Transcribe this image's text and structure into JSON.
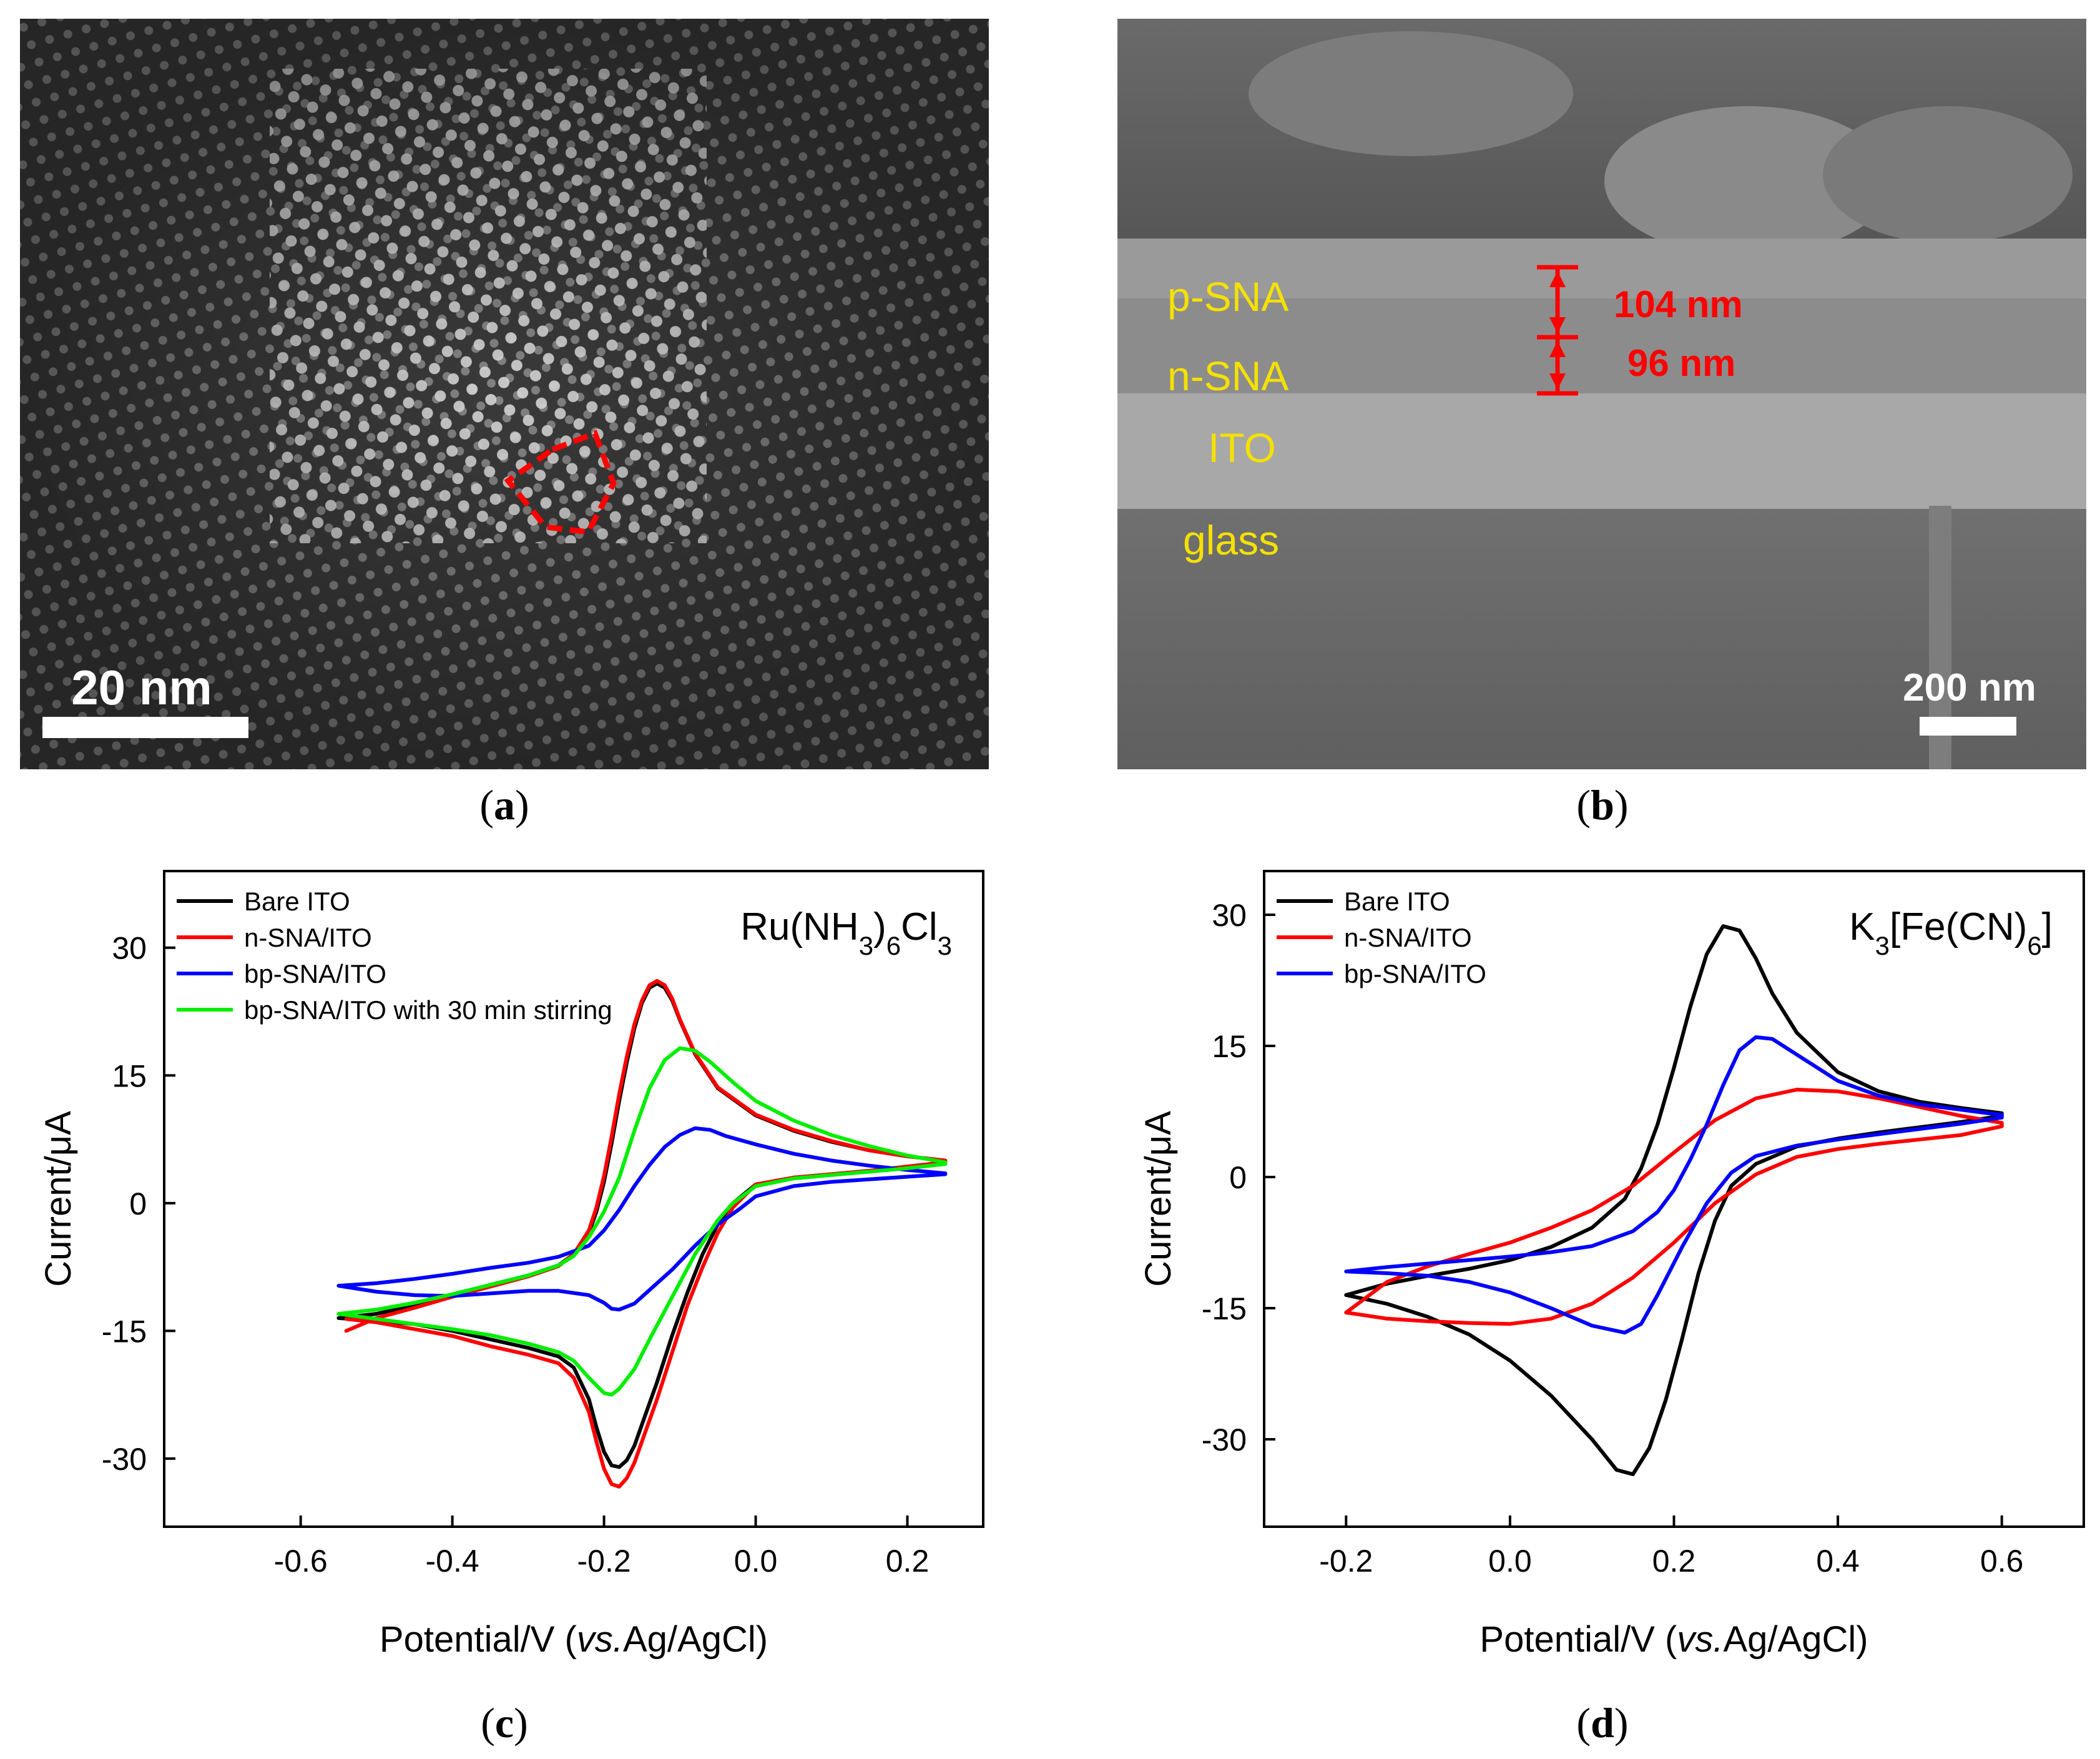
{
  "panels": {
    "a": {
      "letter": "a",
      "scale_bar_label": "20 nm"
    },
    "b": {
      "letter": "b",
      "layer_labels": [
        "p-SNA",
        "n-SNA",
        "ITO",
        "glass"
      ],
      "thickness_labels": [
        "104 nm",
        "96 nm"
      ],
      "scale_bar_label": "200 nm"
    },
    "c": {
      "letter": "c"
    },
    "d": {
      "letter": "d"
    }
  },
  "colors": {
    "black": "#000000",
    "red": "#ff0000",
    "blue": "#0000ff",
    "green": "#00ee00",
    "annotation_red": "#ff0000",
    "annotation_yellow": "#f5e100",
    "probe_title": "#0000ff"
  },
  "chart_data": [
    {
      "id": "c",
      "type": "line",
      "title": "Ru(NH₃)₆Cl₃",
      "title_parts": [
        {
          "t": "Ru(NH"
        },
        {
          "t": "3",
          "sub": true
        },
        {
          "t": ")"
        },
        {
          "t": "6",
          "sub": true
        },
        {
          "t": "Cl"
        },
        {
          "t": "3",
          "sub": true
        }
      ],
      "xlabel_prefix": "Potential/V (",
      "xlabel_italic": "vs.",
      "xlabel_suffix": "Ag/AgCl)",
      "ylabel": "Current/μA",
      "xlim": [
        -0.78,
        0.3
      ],
      "ylim": [
        -38,
        39
      ],
      "xticks": [
        -0.6,
        -0.4,
        -0.2,
        0.0,
        0.2
      ],
      "xtick_labels": [
        "-0.6",
        "-0.4",
        "-0.2",
        "0.0",
        "0.2"
      ],
      "yticks": [
        -30,
        -15,
        0,
        15,
        30
      ],
      "ytick_labels": [
        "-30",
        "-15",
        "0",
        "15",
        "30"
      ],
      "legend": "top-left",
      "series": [
        {
          "name": "Bare ITO",
          "color": "black",
          "x": [
            -0.55,
            -0.5,
            -0.45,
            -0.4,
            -0.35,
            -0.3,
            -0.26,
            -0.24,
            -0.22,
            -0.21,
            -0.2,
            -0.19,
            -0.18,
            -0.17,
            -0.16,
            -0.15,
            -0.14,
            -0.13,
            -0.12,
            -0.11,
            -0.1,
            -0.08,
            -0.05,
            0.0,
            0.05,
            0.1,
            0.15,
            0.2,
            0.25,
            0.25,
            0.2,
            0.15,
            0.1,
            0.05,
            0.0,
            -0.03,
            -0.05,
            -0.07,
            -0.09,
            -0.11,
            -0.13,
            -0.15,
            -0.16,
            -0.17,
            -0.18,
            -0.19,
            -0.2,
            -0.21,
            -0.22,
            -0.24,
            -0.26,
            -0.3,
            -0.35,
            -0.4,
            -0.45,
            -0.5,
            -0.55
          ],
          "y": [
            -13.5,
            -13.0,
            -12.0,
            -10.8,
            -9.6,
            -8.5,
            -7.3,
            -6.0,
            -3.5,
            -1.0,
            2.5,
            7.0,
            12.0,
            16.5,
            20.5,
            23.5,
            25.3,
            25.8,
            25.3,
            23.8,
            21.5,
            17.5,
            13.5,
            10.3,
            8.5,
            7.2,
            6.2,
            5.5,
            5.0,
            4.8,
            4.3,
            3.8,
            3.4,
            3.0,
            2.2,
            0.0,
            -2.5,
            -6.0,
            -10.5,
            -15.5,
            -21.0,
            -26.0,
            -28.5,
            -30.2,
            -31.0,
            -30.8,
            -29.2,
            -26.3,
            -23.0,
            -19.3,
            -18.0,
            -17.0,
            -16.0,
            -15.0,
            -14.2,
            -13.8,
            -13.5
          ]
        },
        {
          "name": "n-SNA/ITO",
          "color": "red",
          "x": [
            -0.54,
            -0.5,
            -0.45,
            -0.4,
            -0.35,
            -0.3,
            -0.26,
            -0.24,
            -0.22,
            -0.21,
            -0.2,
            -0.19,
            -0.18,
            -0.17,
            -0.16,
            -0.15,
            -0.14,
            -0.13,
            -0.12,
            -0.11,
            -0.1,
            -0.08,
            -0.05,
            0.0,
            0.05,
            0.1,
            0.15,
            0.2,
            0.25,
            0.25,
            0.2,
            0.15,
            0.1,
            0.05,
            0.0,
            -0.03,
            -0.05,
            -0.07,
            -0.09,
            -0.11,
            -0.13,
            -0.15,
            -0.16,
            -0.17,
            -0.18,
            -0.19,
            -0.2,
            -0.21,
            -0.22,
            -0.24,
            -0.26,
            -0.3,
            -0.35,
            -0.4,
            -0.45,
            -0.5,
            -0.54
          ],
          "y": [
            -15.0,
            -13.5,
            -12.3,
            -11.0,
            -9.8,
            -8.6,
            -7.4,
            -6.0,
            -3.2,
            -0.5,
            3.2,
            7.8,
            12.8,
            17.2,
            21.0,
            23.8,
            25.6,
            26.1,
            25.6,
            24.0,
            21.6,
            17.6,
            13.6,
            10.4,
            8.6,
            7.3,
            6.2,
            5.5,
            5.0,
            4.8,
            4.3,
            3.8,
            3.4,
            3.0,
            2.2,
            -0.5,
            -3.5,
            -7.5,
            -12.0,
            -17.5,
            -23.0,
            -28.0,
            -30.5,
            -32.3,
            -33.3,
            -33.0,
            -31.2,
            -28.0,
            -24.5,
            -20.5,
            -18.8,
            -17.8,
            -16.8,
            -15.6,
            -14.8,
            -14.0,
            -13.6
          ]
        },
        {
          "name": "bp-SNA/ITO",
          "color": "blue",
          "x": [
            -0.55,
            -0.5,
            -0.45,
            -0.4,
            -0.35,
            -0.3,
            -0.26,
            -0.22,
            -0.2,
            -0.18,
            -0.16,
            -0.14,
            -0.12,
            -0.1,
            -0.08,
            -0.06,
            -0.04,
            0.0,
            0.05,
            0.1,
            0.15,
            0.2,
            0.25,
            0.25,
            0.2,
            0.15,
            0.1,
            0.05,
            0.0,
            -0.02,
            -0.05,
            -0.08,
            -0.11,
            -0.14,
            -0.16,
            -0.18,
            -0.19,
            -0.2,
            -0.22,
            -0.26,
            -0.3,
            -0.35,
            -0.4,
            -0.45,
            -0.5,
            -0.55
          ],
          "y": [
            -9.7,
            -9.4,
            -8.9,
            -8.3,
            -7.6,
            -7.0,
            -6.3,
            -5.0,
            -3.2,
            -0.8,
            2.0,
            4.5,
            6.6,
            8.0,
            8.8,
            8.6,
            7.9,
            6.9,
            5.8,
            5.0,
            4.4,
            3.9,
            3.5,
            3.4,
            3.1,
            2.8,
            2.5,
            2.0,
            0.8,
            -0.6,
            -2.5,
            -5.0,
            -7.8,
            -10.2,
            -11.8,
            -12.5,
            -12.4,
            -11.7,
            -10.8,
            -10.3,
            -10.3,
            -10.6,
            -10.9,
            -10.8,
            -10.4,
            -9.7
          ]
        },
        {
          "name": "bp-SNA/ITO with 30 min stirring",
          "color": "green",
          "x": [
            -0.55,
            -0.5,
            -0.45,
            -0.4,
            -0.35,
            -0.3,
            -0.26,
            -0.24,
            -0.22,
            -0.2,
            -0.18,
            -0.16,
            -0.14,
            -0.12,
            -0.1,
            -0.08,
            -0.06,
            -0.03,
            0.0,
            0.05,
            0.1,
            0.15,
            0.2,
            0.25,
            0.25,
            0.2,
            0.15,
            0.1,
            0.05,
            0.0,
            -0.03,
            -0.05,
            -0.08,
            -0.11,
            -0.14,
            -0.16,
            -0.18,
            -0.19,
            -0.2,
            -0.22,
            -0.24,
            -0.26,
            -0.3,
            -0.35,
            -0.4,
            -0.45,
            -0.5,
            -0.55
          ],
          "y": [
            -13.0,
            -12.5,
            -11.7,
            -10.7,
            -9.6,
            -8.5,
            -7.3,
            -6.2,
            -4.0,
            -1.0,
            3.0,
            8.5,
            13.5,
            16.8,
            18.2,
            17.9,
            16.6,
            14.2,
            12.0,
            9.7,
            8.0,
            6.7,
            5.6,
            4.8,
            4.6,
            4.1,
            3.7,
            3.3,
            2.9,
            2.0,
            0.0,
            -2.0,
            -6.0,
            -11.0,
            -16.0,
            -19.5,
            -21.8,
            -22.5,
            -22.3,
            -20.5,
            -18.5,
            -17.5,
            -16.5,
            -15.5,
            -14.8,
            -14.2,
            -13.6,
            -13.0
          ]
        }
      ]
    },
    {
      "id": "d",
      "type": "line",
      "title": "K₃[Fe(CN)₆]",
      "title_parts": [
        {
          "t": "K"
        },
        {
          "t": "3",
          "sub": true
        },
        {
          "t": "[Fe(CN)"
        },
        {
          "t": "6",
          "sub": true
        },
        {
          "t": "]"
        }
      ],
      "xlabel_prefix": "Potential/V (",
      "xlabel_italic": "vs.",
      "xlabel_suffix": "Ag/AgCl)",
      "ylabel": "Current/μA",
      "xlim": [
        -0.3,
        0.7
      ],
      "ylim": [
        -40,
        35
      ],
      "xticks": [
        -0.2,
        0.0,
        0.2,
        0.4,
        0.6
      ],
      "xtick_labels": [
        "-0.2",
        "0.0",
        "0.2",
        "0.4",
        "0.6"
      ],
      "yticks": [
        -30,
        -15,
        0,
        15,
        30
      ],
      "ytick_labels": [
        "-30",
        "-15",
        "0",
        "15",
        "30"
      ],
      "legend": "top-left",
      "series": [
        {
          "name": "Bare ITO",
          "color": "black",
          "x": [
            -0.2,
            -0.15,
            -0.1,
            -0.05,
            0.0,
            0.05,
            0.1,
            0.14,
            0.16,
            0.18,
            0.2,
            0.22,
            0.24,
            0.26,
            0.28,
            0.3,
            0.32,
            0.35,
            0.4,
            0.45,
            0.5,
            0.55,
            0.6,
            0.6,
            0.55,
            0.5,
            0.45,
            0.4,
            0.35,
            0.3,
            0.27,
            0.25,
            0.23,
            0.21,
            0.19,
            0.17,
            0.15,
            0.13,
            0.1,
            0.05,
            0.0,
            -0.05,
            -0.1,
            -0.15,
            -0.2
          ],
          "y": [
            -13.5,
            -12.2,
            -11.3,
            -10.5,
            -9.5,
            -8.0,
            -5.8,
            -2.5,
            1.0,
            6.0,
            12.5,
            19.5,
            25.5,
            28.7,
            28.2,
            25.0,
            21.0,
            16.5,
            12.0,
            9.8,
            8.6,
            7.9,
            7.3,
            7.0,
            6.3,
            5.7,
            5.1,
            4.4,
            3.5,
            1.5,
            -1.0,
            -5.0,
            -11.0,
            -18.5,
            -25.5,
            -31.0,
            -34.0,
            -33.5,
            -30.0,
            -25.0,
            -21.0,
            -18.0,
            -16.0,
            -14.5,
            -13.5
          ]
        },
        {
          "name": "n-SNA/ITO",
          "color": "red",
          "x": [
            -0.2,
            -0.15,
            -0.1,
            -0.05,
            0.0,
            0.05,
            0.1,
            0.15,
            0.2,
            0.25,
            0.3,
            0.35,
            0.4,
            0.45,
            0.5,
            0.55,
            0.6,
            0.6,
            0.55,
            0.5,
            0.45,
            0.4,
            0.35,
            0.3,
            0.25,
            0.2,
            0.15,
            0.1,
            0.05,
            0.0,
            -0.05,
            -0.1,
            -0.15,
            -0.2
          ],
          "y": [
            -15.5,
            -12.0,
            -10.2,
            -8.8,
            -7.5,
            -5.8,
            -3.8,
            -1.0,
            2.8,
            6.5,
            9.0,
            10.0,
            9.8,
            9.0,
            8.0,
            7.0,
            6.2,
            5.8,
            4.8,
            4.3,
            3.8,
            3.2,
            2.3,
            0.3,
            -3.0,
            -7.5,
            -11.5,
            -14.5,
            -16.2,
            -16.8,
            -16.7,
            -16.5,
            -16.2,
            -15.5
          ]
        },
        {
          "name": "bp-SNA/ITO",
          "color": "blue",
          "x": [
            -0.2,
            -0.15,
            -0.1,
            -0.05,
            0.0,
            0.05,
            0.1,
            0.15,
            0.18,
            0.2,
            0.22,
            0.24,
            0.26,
            0.28,
            0.3,
            0.32,
            0.35,
            0.4,
            0.45,
            0.5,
            0.55,
            0.6,
            0.6,
            0.55,
            0.5,
            0.45,
            0.4,
            0.35,
            0.3,
            0.27,
            0.24,
            0.21,
            0.18,
            0.16,
            0.14,
            0.1,
            0.05,
            0.0,
            -0.05,
            -0.1,
            -0.15,
            -0.2
          ],
          "y": [
            -10.8,
            -10.3,
            -9.9,
            -9.5,
            -9.1,
            -8.6,
            -7.9,
            -6.2,
            -4.0,
            -1.5,
            2.0,
            6.0,
            10.5,
            14.5,
            16.0,
            15.8,
            14.0,
            11.0,
            9.3,
            8.3,
            7.7,
            7.1,
            6.8,
            6.1,
            5.5,
            4.9,
            4.3,
            3.6,
            2.4,
            0.5,
            -3.0,
            -8.0,
            -13.5,
            -16.8,
            -17.8,
            -17.0,
            -15.0,
            -13.2,
            -12.0,
            -11.3,
            -11.0,
            -10.8
          ]
        }
      ]
    }
  ]
}
